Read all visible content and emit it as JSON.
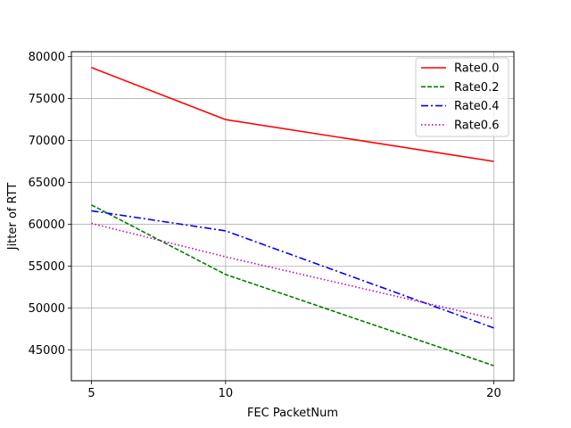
{
  "chart_data": {
    "type": "line",
    "title": "",
    "xlabel": "FEC PacketNum",
    "ylabel": "Jitter of RTT",
    "x": [
      5,
      10,
      20
    ],
    "xticks": [
      "5",
      "10",
      "20"
    ],
    "xlim": [
      4.25,
      20.75
    ],
    "yticks": [
      "45000",
      "50000",
      "55000",
      "60000",
      "65000",
      "70000",
      "75000",
      "80000"
    ],
    "ylim": [
      41300,
      80600
    ],
    "grid": true,
    "legend_position": "top-right",
    "series": [
      {
        "name": "Rate0.0",
        "values": [
          78700,
          72500,
          67500
        ],
        "color": "#ff0000",
        "style": "solid"
      },
      {
        "name": "Rate0.2",
        "values": [
          62300,
          54000,
          43100
        ],
        "color": "#008000",
        "style": "dashed"
      },
      {
        "name": "Rate0.4",
        "values": [
          61600,
          59200,
          47600
        ],
        "color": "#0000ff",
        "style": "dashdot"
      },
      {
        "name": "Rate0.6",
        "values": [
          60100,
          56100,
          48700
        ],
        "color": "#bf00bf",
        "style": "dotted"
      }
    ]
  }
}
